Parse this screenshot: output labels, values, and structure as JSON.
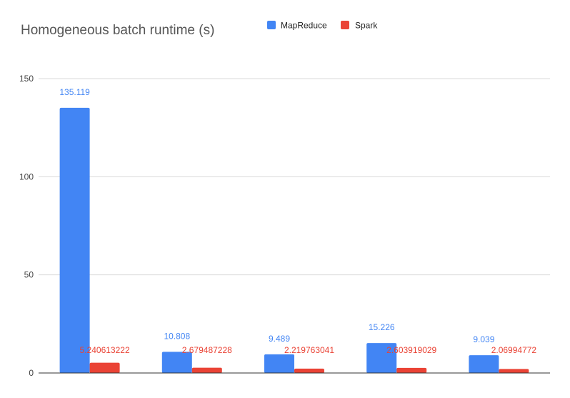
{
  "chart_data": {
    "type": "bar",
    "title": "Homogeneous batch runtime (s)",
    "xlabel": "",
    "ylabel": "",
    "categories": [
      "",
      "",
      "",
      "",
      ""
    ],
    "ylim": [
      0,
      150
    ],
    "yticks": [
      0,
      50,
      100,
      150
    ],
    "grid": true,
    "legend_position": "top",
    "series": [
      {
        "name": "MapReduce",
        "color": "#4285f4",
        "values": [
          135.119,
          10.808,
          9.489,
          15.226,
          9.039
        ],
        "labels": [
          "135.119",
          "10.808",
          "9.489",
          "15.226",
          "9.039"
        ]
      },
      {
        "name": "Spark",
        "color": "#ea4335",
        "values": [
          5.240613222,
          2.679487228,
          2.219763041,
          2.603919029,
          2.06994772
        ],
        "labels": [
          "5.240613222",
          "2.679487228",
          "2.219763041",
          "2.603919029",
          "2.06994772"
        ]
      }
    ]
  }
}
